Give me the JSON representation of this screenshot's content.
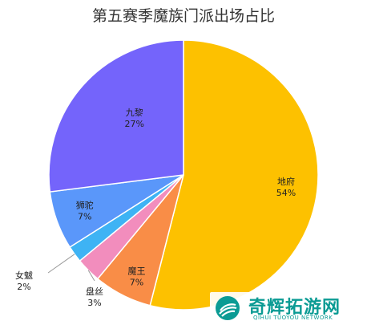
{
  "chart_data": {
    "type": "pie",
    "title": "第五赛季魔族门派出场占比",
    "slices": [
      {
        "label": "地府",
        "value": 54,
        "value_label": "54%",
        "color": "#FDC100"
      },
      {
        "label": "魔王",
        "value": 7,
        "value_label": "7%",
        "color": "#F98D47"
      },
      {
        "label": "盘丝",
        "value": 3,
        "value_label": "3%",
        "color": "#F28DBD"
      },
      {
        "label": "女魃",
        "value": 2,
        "value_label": "2%",
        "color": "#3EB3F4"
      },
      {
        "label": "狮驼",
        "value": 7,
        "value_label": "7%",
        "color": "#5A97FA"
      },
      {
        "label": "九黎",
        "value": 27,
        "value_label": "27%",
        "color": "#7464FB"
      }
    ],
    "start_angle": "12 o'clock",
    "direction": "clockwise",
    "legend": "none"
  },
  "watermark": {
    "main": "奇辉拓游网",
    "sub": "QIHUI TUOYOU NETWORK"
  }
}
